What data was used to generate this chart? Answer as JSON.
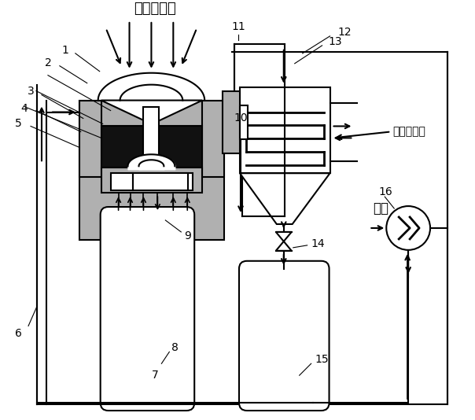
{
  "bg": "#ffffff",
  "lc": "#000000",
  "gc": "#b0b0b0",
  "text_solar": "聚焦太阳光",
  "text_heated": "被加热工质",
  "text_air": "空气"
}
